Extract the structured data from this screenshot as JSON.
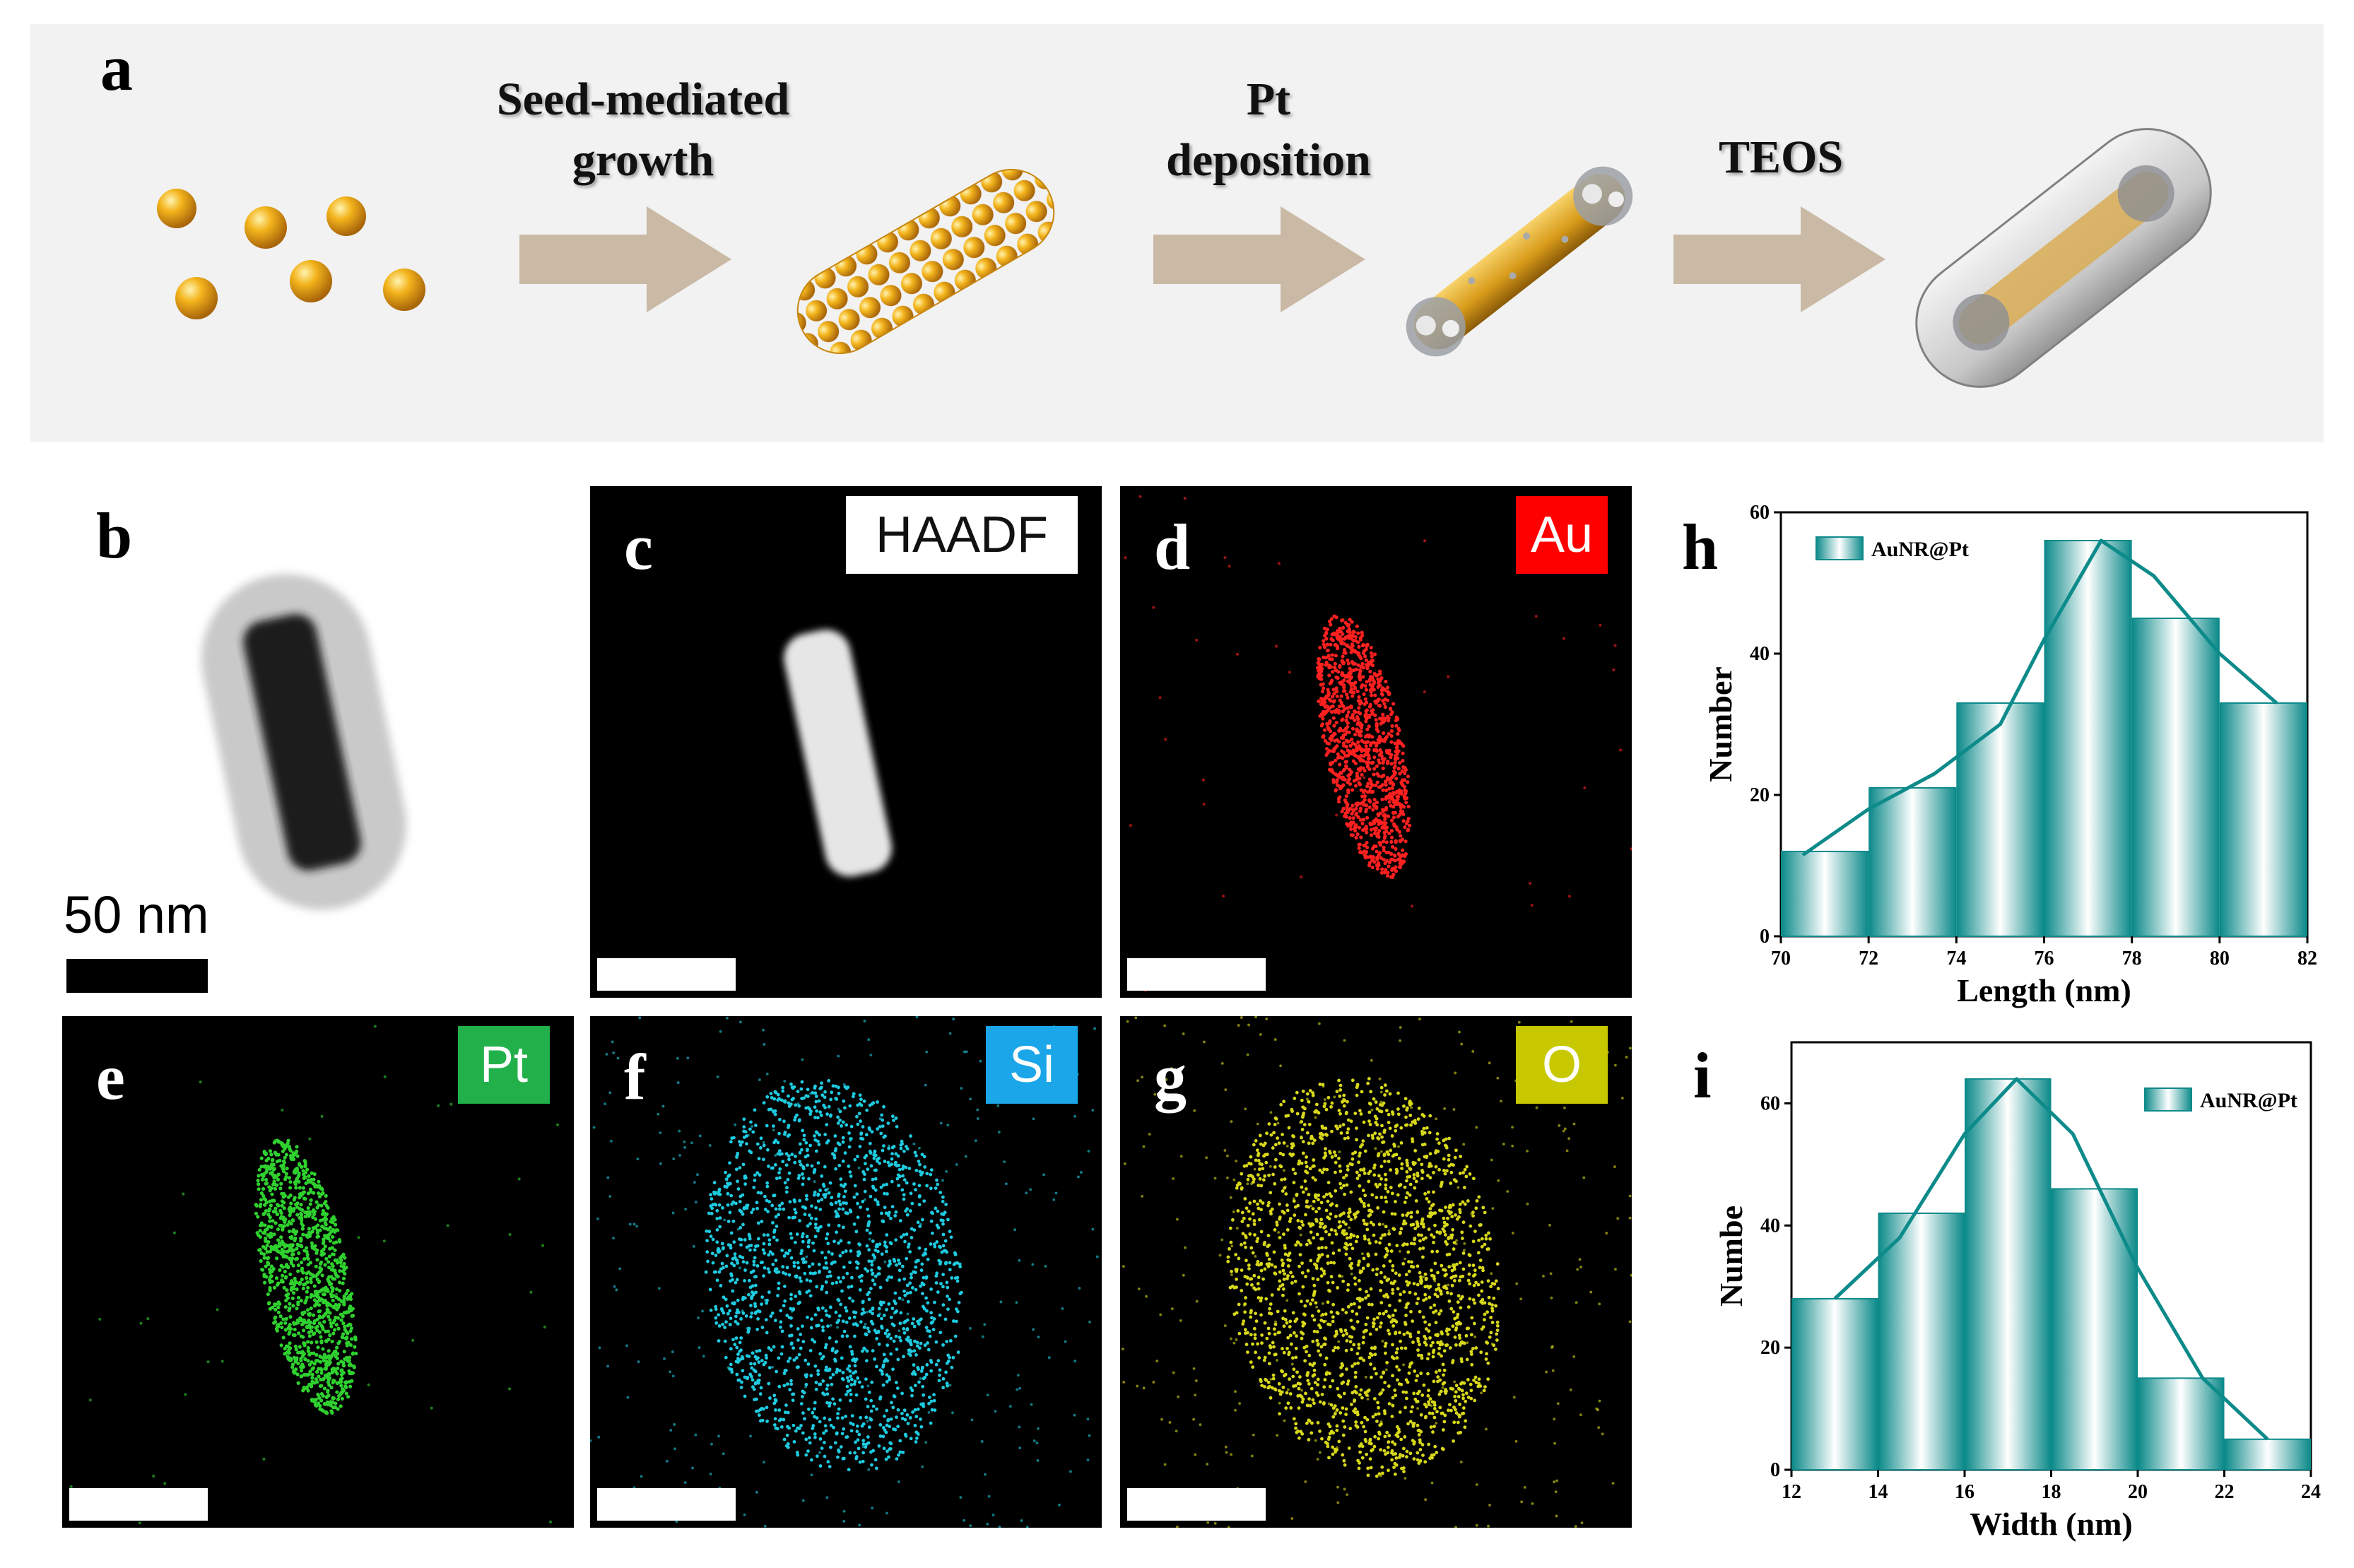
{
  "panel_labels": {
    "a": "a",
    "b": "b",
    "c": "c",
    "d": "d",
    "e": "e",
    "f": "f",
    "g": "g",
    "h": "h",
    "i": "i"
  },
  "synthesis_steps": [
    {
      "line1": "Seed-mediated",
      "line2": "growth"
    },
    {
      "line1": "Pt",
      "line2": "deposition"
    },
    {
      "line1": "TEOS",
      "line2": ""
    }
  ],
  "tem": {
    "scale_text": "50 nm"
  },
  "map_tags": {
    "haadf": {
      "text": "HAADF",
      "bg": "#ffffff",
      "fg": "#111111"
    },
    "au": {
      "text": "Au",
      "bg": "#ff0000",
      "fg": "#ffffff"
    },
    "pt": {
      "text": "Pt",
      "bg": "#22b04a",
      "fg": "#ffffff"
    },
    "si": {
      "text": "Si",
      "bg": "#1aa6e8",
      "fg": "#ffffff"
    },
    "o": {
      "text": "O",
      "bg": "#c8c800",
      "fg": "#ffffff"
    }
  },
  "chart_data": [
    {
      "type": "bar",
      "panel": "h",
      "legend": "AuNR@Pt",
      "xlabel": "Length (nm)",
      "ylabel": "Number",
      "xlim": [
        70,
        82
      ],
      "ylim": [
        0,
        60
      ],
      "xticks": [
        70,
        72,
        74,
        76,
        78,
        80,
        82
      ],
      "yticks": [
        0,
        20,
        40,
        60
      ],
      "bins": [
        [
          70,
          72
        ],
        [
          72,
          74
        ],
        [
          74,
          76
        ],
        [
          76,
          78
        ],
        [
          78,
          80
        ],
        [
          80,
          82
        ]
      ],
      "values": [
        12,
        21,
        33,
        56,
        45,
        33
      ],
      "fit_curve": [
        [
          70.5,
          11.5
        ],
        [
          72,
          18
        ],
        [
          73.5,
          23
        ],
        [
          75,
          30
        ],
        [
          76,
          42
        ],
        [
          77.3,
          56
        ],
        [
          78.5,
          51
        ],
        [
          80,
          40
        ],
        [
          81.3,
          33
        ]
      ],
      "color": "#0d8a8a"
    },
    {
      "type": "bar",
      "panel": "i",
      "legend": "AuNR@Pt",
      "xlabel": "Width (nm)",
      "ylabel": "Numbe",
      "xlim": [
        12,
        24
      ],
      "ylim": [
        0,
        70
      ],
      "xticks": [
        12,
        14,
        16,
        18,
        20,
        22,
        24
      ],
      "yticks": [
        0,
        20,
        40,
        60
      ],
      "bins": [
        [
          12,
          14
        ],
        [
          14,
          16
        ],
        [
          16,
          18
        ],
        [
          18,
          20
        ],
        [
          20,
          22
        ],
        [
          22,
          24
        ]
      ],
      "values": [
        28,
        42,
        64,
        46,
        15,
        5
      ],
      "fit_curve": [
        [
          13,
          28
        ],
        [
          14.5,
          38
        ],
        [
          16,
          55
        ],
        [
          17.2,
          64
        ],
        [
          18.5,
          55
        ],
        [
          20,
          33
        ],
        [
          21.5,
          15
        ],
        [
          23,
          5
        ]
      ],
      "color": "#0d8a8a"
    }
  ]
}
